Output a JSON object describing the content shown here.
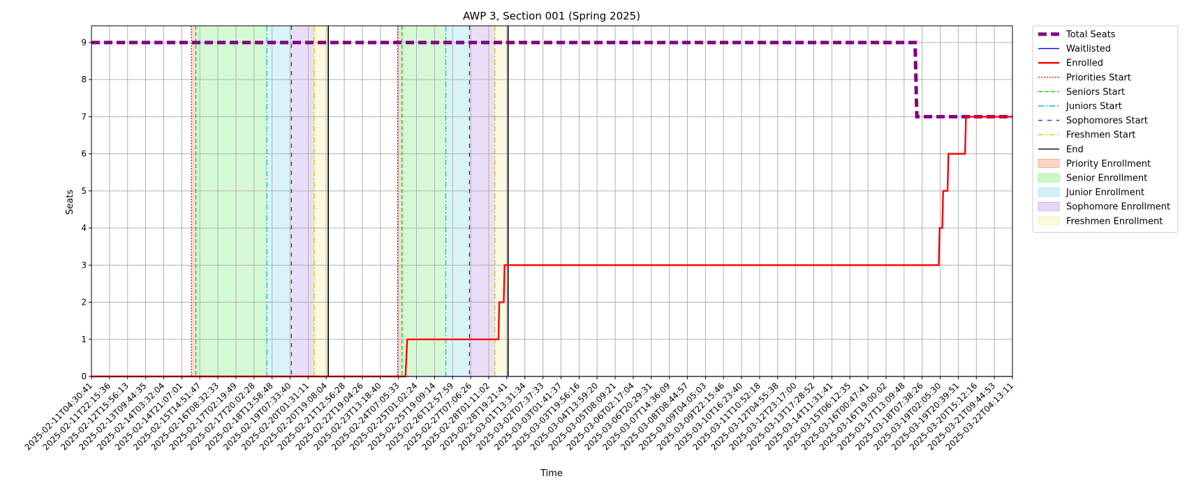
{
  "chart_data": {
    "type": "line",
    "title": "AWP 3, Section 001 (Spring 2025)",
    "xlabel": "Time",
    "ylabel": "Seats",
    "ylim": [
      0,
      9.45
    ],
    "yticks": [
      0,
      1,
      2,
      3,
      4,
      5,
      6,
      7,
      8,
      9
    ],
    "grid": true,
    "legend_position": "outside-right",
    "x_range_days": [
      0,
      52.5
    ],
    "x_ticks": [
      "2025-02-11T04:30:41",
      "2025-02-11T22:15:36",
      "2025-02-12T15:56:13",
      "2025-02-13T09:44:35",
      "2025-02-14T03:32:04",
      "2025-02-14T21:07:01",
      "2025-02-15T14:51:47",
      "2025-02-16T08:32:33",
      "2025-02-17T02:19:49",
      "2025-02-17T20:02:28",
      "2025-02-18T13:58:48",
      "2025-02-19T07:33:40",
      "2025-02-20T01:31:11",
      "2025-02-20T19:08:04",
      "2025-02-21T12:56:28",
      "2025-02-22T19:04:26",
      "2025-02-23T13:18:40",
      "2025-02-24T07:05:33",
      "2025-02-25T01:02:24",
      "2025-02-25T19:09:14",
      "2025-02-26T12:57:59",
      "2025-02-27T07:06:26",
      "2025-02-28T01:11:02",
      "2025-02-28T19:21:41",
      "2025-03-01T13:31:34",
      "2025-03-02T07:37:33",
      "2025-03-03T01:41:37",
      "2025-03-03T19:56:16",
      "2025-03-04T13:59:20",
      "2025-03-05T08:09:21",
      "2025-03-06T02:17:04",
      "2025-03-06T20:29:31",
      "2025-03-07T14:36:09",
      "2025-03-08T08:44:57",
      "2025-03-09T04:05:03",
      "2025-03-09T22:15:46",
      "2025-03-10T16:23:40",
      "2025-03-11T10:52:18",
      "2025-03-12T04:55:38",
      "2025-03-12T23:17:00",
      "2025-03-13T17:28:52",
      "2025-03-14T11:31:41",
      "2025-03-15T06:12:35",
      "2025-03-16T00:47:41",
      "2025-03-16T19:00:02",
      "2025-03-17T13:09:48",
      "2025-03-18T07:38:26",
      "2025-03-19T02:05:30",
      "2025-03-19T20:39:51",
      "2025-03-20T15:12:16",
      "2025-03-21T09:44:53",
      "2025-03-22T04:13:11"
    ],
    "series": [
      {
        "name": "Total Seats",
        "color": "#800080",
        "style": "dashed-thick",
        "x": [
          0,
          46.95,
          47.05,
          52.5
        ],
        "y": [
          9,
          9,
          7,
          7
        ]
      },
      {
        "name": "Waitlisted",
        "color": "#0000ff",
        "style": "solid",
        "x": [
          0,
          52.5
        ],
        "y": [
          0,
          0
        ]
      },
      {
        "name": "Enrolled",
        "color": "#ff0000",
        "style": "solid-thick",
        "x": [
          0,
          17.9,
          18.0,
          23.2,
          23.25,
          23.5,
          23.55,
          48.3,
          48.35,
          48.5,
          48.55,
          48.8,
          48.85,
          49.8,
          49.85,
          52.5
        ],
        "y": [
          0,
          0,
          1,
          1,
          2,
          2,
          3,
          3,
          4,
          4,
          5,
          5,
          6,
          6,
          7,
          7
        ]
      }
    ],
    "vlines": [
      {
        "name": "Priorities Start",
        "color": "#ff0000",
        "style": "dotted",
        "x": [
          5.7,
          17.45
        ]
      },
      {
        "name": "Seniors Start",
        "color": "#00cc00",
        "style": "dashed",
        "x": [
          5.95,
          17.7
        ]
      },
      {
        "name": "Juniors Start",
        "color": "#00bcd4",
        "style": "dashdot",
        "x": [
          10.0,
          20.2
        ]
      },
      {
        "name": "Sophomores Start",
        "color": "#6a0dad",
        "style": "loosedash",
        "x": [
          11.4,
          21.55
        ]
      },
      {
        "name": "Freshmen Start",
        "color": "#cccc00",
        "style": "dashdot",
        "x": [
          12.7,
          23.0
        ]
      },
      {
        "name": "End",
        "color": "#000000",
        "style": "solid",
        "x": [
          13.5,
          23.75
        ]
      }
    ],
    "spans": [
      {
        "name": "Priority Enrollment",
        "color": "#f4a582",
        "x": [
          [
            5.7,
            5.95
          ],
          [
            17.45,
            17.7
          ]
        ]
      },
      {
        "name": "Senior Enrollment",
        "color": "#90ee90",
        "x": [
          [
            5.95,
            10.0
          ],
          [
            17.7,
            20.2
          ]
        ]
      },
      {
        "name": "Junior Enrollment",
        "color": "#9be3ec",
        "x": [
          [
            10.0,
            11.4
          ],
          [
            20.2,
            21.55
          ]
        ]
      },
      {
        "name": "Sophomore Enrollment",
        "color": "#c3a8ec",
        "x": [
          [
            11.4,
            12.7
          ],
          [
            21.55,
            23.0
          ]
        ]
      },
      {
        "name": "Freshmen Enrollment",
        "color": "#f3f3b0",
        "x": [
          [
            12.7,
            13.5
          ],
          [
            23.0,
            23.75
          ]
        ]
      }
    ],
    "legend": [
      "Total Seats",
      "Waitlisted",
      "Enrolled",
      "Priorities Start",
      "Seniors Start",
      "Juniors Start",
      "Sophomores Start",
      "Freshmen Start",
      "End",
      "Priority Enrollment",
      "Senior Enrollment",
      "Junior Enrollment",
      "Sophomore Enrollment",
      "Freshmen Enrollment"
    ]
  }
}
